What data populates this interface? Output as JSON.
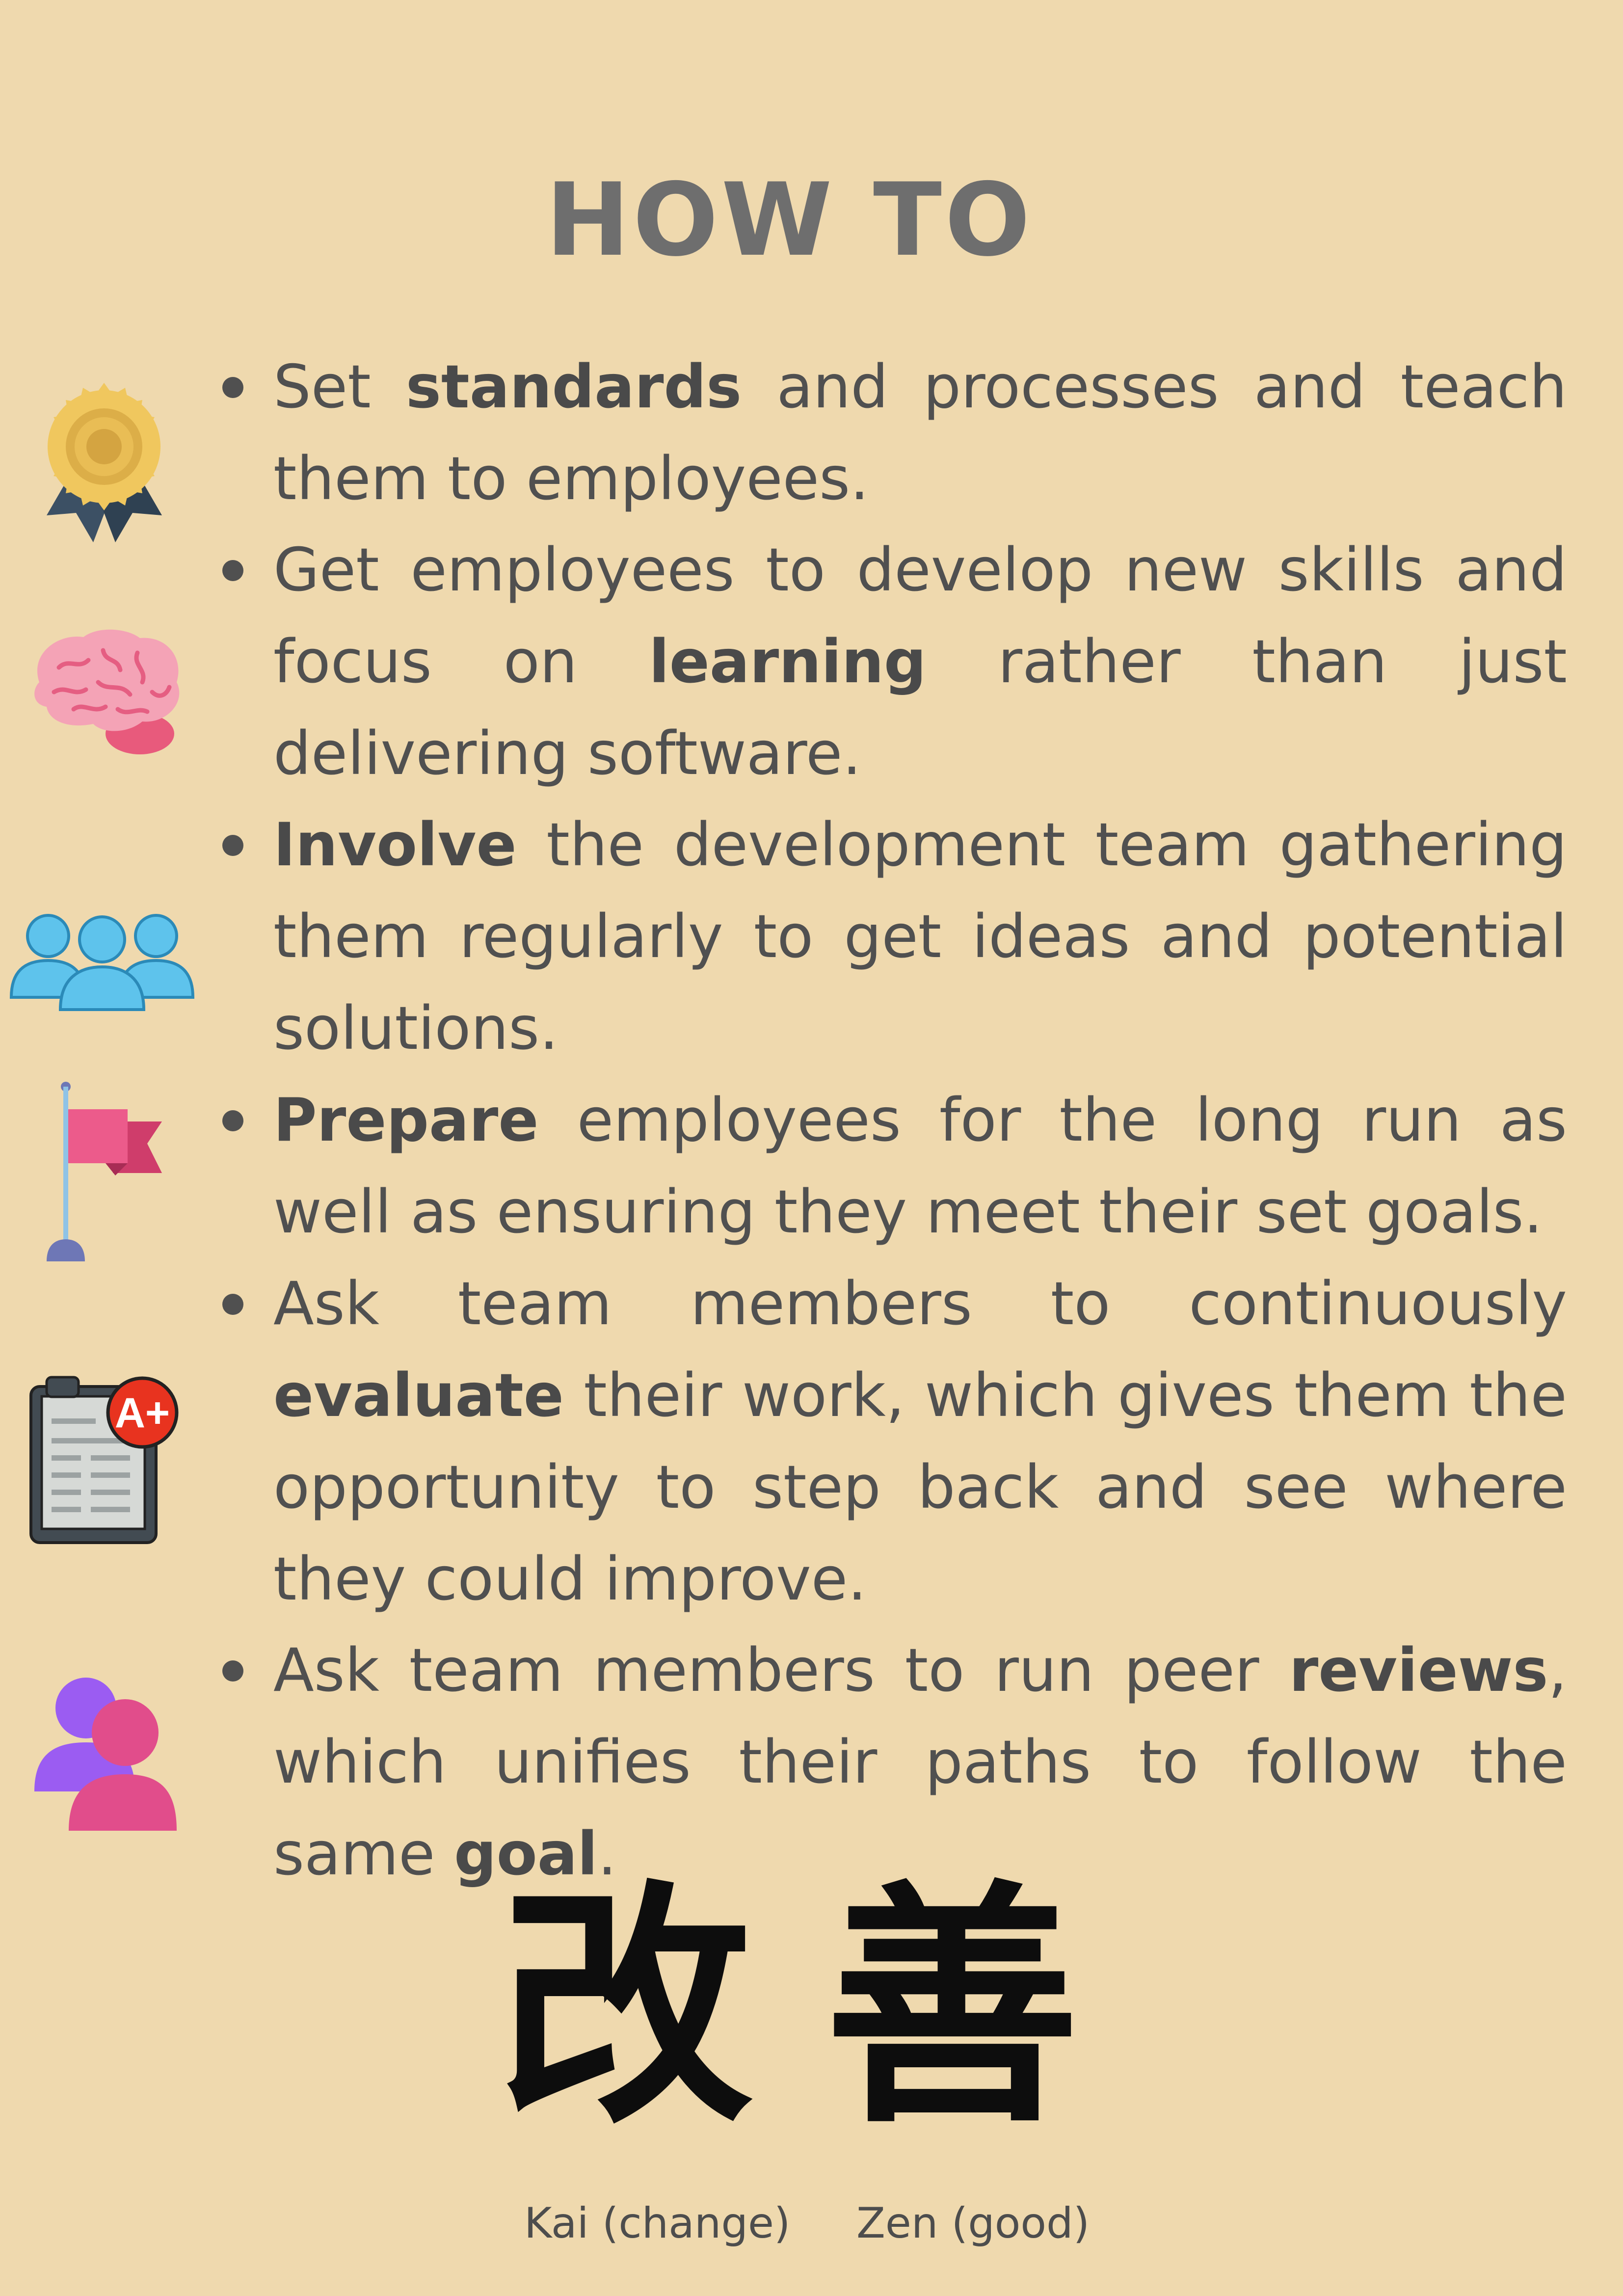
{
  "title": "HOW TO",
  "items": [
    {
      "icon": "award-medal-icon",
      "pre": "Set ",
      "bold": "standards",
      "post": " and processes and teach them to employees.",
      "tail_bold": "",
      "tail": ""
    },
    {
      "icon": "brain-icon",
      "pre": "Get employees to develop new skills and focus on ",
      "bold": "learning",
      "post": " rather than just delivering software.",
      "tail_bold": "",
      "tail": ""
    },
    {
      "icon": "team-group-icon",
      "pre": "",
      "bold": "Involve",
      "post": " the development team gathering them regularly to get ideas and potential solutions.",
      "tail_bold": "",
      "tail": ""
    },
    {
      "icon": "goal-flag-icon",
      "pre": "",
      "bold": "Prepare",
      "post": " employees for the long run  as well as ensuring they meet their set goals.",
      "tail_bold": "",
      "tail": ""
    },
    {
      "icon": "grade-clipboard-icon",
      "pre": "Ask team members to continuously ",
      "bold": "evaluate",
      "post": " their work, which gives them the opportunity to step back and see where they could improve.",
      "tail_bold": "",
      "tail": ""
    },
    {
      "icon": "peer-users-icon",
      "pre": "Ask team members to run peer ",
      "bold": "reviews",
      "post": ", which unifies their paths to follow the same ",
      "tail_bold": "goal",
      "tail": "."
    }
  ],
  "clipboard_grade": "A+",
  "kanji": {
    "kai": "改",
    "zen": "善"
  },
  "captions": {
    "kai": "Kai (change)",
    "zen": "Zen (good)"
  }
}
